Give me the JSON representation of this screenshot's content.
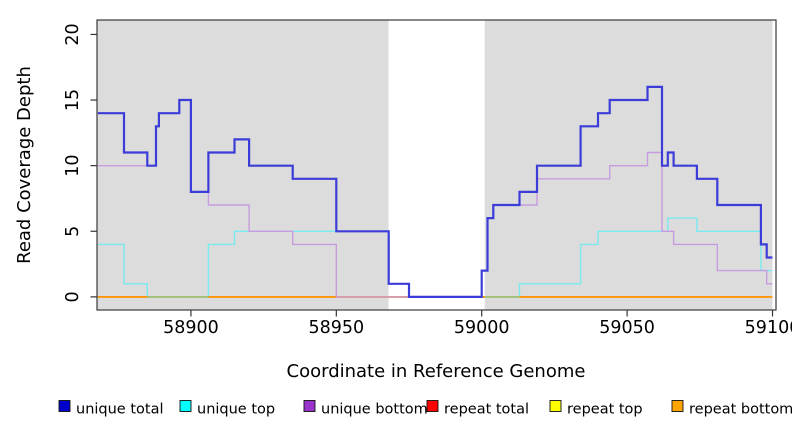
{
  "chart_data": {
    "type": "line",
    "step": true,
    "title": "",
    "xlabel": "Coordinate in Reference Genome",
    "ylabel": "Read Coverage Depth",
    "x_ticks": [
      58900,
      58950,
      59000,
      59050,
      59100
    ],
    "y_ticks": [
      0,
      5,
      10,
      15,
      20
    ],
    "x_range": [
      58867.7,
      59101.2
    ],
    "y_range": [
      -1,
      21.1
    ],
    "grid": false,
    "legend_position": "bottom",
    "plot_background_color": "#DCDCDC",
    "gap_region": {
      "x": [
        58968,
        59001
      ],
      "color": "#FFFFFF"
    },
    "series": [
      {
        "name": "unique total",
        "color": "#3C3CD8",
        "width": 2.2,
        "points": [
          [
            58868,
            14
          ],
          [
            58877,
            11
          ],
          [
            58885,
            10
          ],
          [
            58888,
            13
          ],
          [
            58889,
            14
          ],
          [
            58896,
            15
          ],
          [
            58900,
            8
          ],
          [
            58906,
            11
          ],
          [
            58915,
            12
          ],
          [
            58920,
            10
          ],
          [
            58935,
            9
          ],
          [
            58950,
            5
          ],
          [
            58968,
            1
          ],
          [
            58975,
            0
          ],
          [
            59000,
            2
          ],
          [
            59002,
            6
          ],
          [
            59004,
            7
          ],
          [
            59013,
            8
          ],
          [
            59019,
            10
          ],
          [
            59034,
            13
          ],
          [
            59040,
            14
          ],
          [
            59044,
            15
          ],
          [
            59057,
            16
          ],
          [
            59062,
            10
          ],
          [
            59064,
            11
          ],
          [
            59066,
            10
          ],
          [
            59074,
            9
          ],
          [
            59081,
            7
          ],
          [
            59096,
            4
          ],
          [
            59098,
            3
          ],
          [
            59100,
            3
          ]
        ]
      },
      {
        "name": "unique top",
        "color": "#78EAF0",
        "width": 1.4,
        "points": [
          [
            58868,
            4
          ],
          [
            58877,
            1
          ],
          [
            58885,
            0
          ],
          [
            58906,
            4
          ],
          [
            58915,
            5
          ],
          [
            58968,
            1
          ],
          [
            58975,
            0
          ],
          [
            59013,
            1
          ],
          [
            59034,
            4
          ],
          [
            59040,
            5
          ],
          [
            59064,
            6
          ],
          [
            59074,
            5
          ],
          [
            59096,
            2
          ],
          [
            59100,
            2
          ]
        ]
      },
      {
        "name": "unique bottom",
        "color": "#C79BE0",
        "width": 1.4,
        "points": [
          [
            58868,
            10
          ],
          [
            58888,
            13
          ],
          [
            58889,
            14
          ],
          [
            58896,
            15
          ],
          [
            58900,
            8
          ],
          [
            58906,
            7
          ],
          [
            58920,
            5
          ],
          [
            58935,
            4
          ],
          [
            58950,
            0
          ],
          [
            59000,
            2
          ],
          [
            59002,
            6
          ],
          [
            59004,
            7
          ],
          [
            59019,
            9
          ],
          [
            59044,
            10
          ],
          [
            59057,
            11
          ],
          [
            59062,
            5
          ],
          [
            59066,
            4
          ],
          [
            59081,
            2
          ],
          [
            59098,
            1
          ],
          [
            59100,
            1
          ]
        ]
      },
      {
        "name": "repeat total",
        "color": "#DD2222",
        "width": 1.4,
        "points": [
          [
            58868,
            0
          ],
          [
            59100,
            0
          ]
        ]
      },
      {
        "name": "repeat top",
        "color": "#FFFF00",
        "width": 1.4,
        "points": [
          [
            58868,
            0
          ],
          [
            59100,
            0
          ]
        ]
      },
      {
        "name": "repeat bottom",
        "color": "#FF9408",
        "width": 1.8,
        "points": [
          [
            58868,
            0
          ],
          [
            59100,
            0
          ]
        ]
      }
    ],
    "blend_segments": [
      {
        "x": [
          58885,
          58906
        ],
        "y": 0,
        "color": "#8FC98F"
      },
      {
        "x": [
          59001,
          59013
        ],
        "y": 0,
        "color": "#8FC98F"
      }
    ]
  },
  "legend": {
    "items": [
      {
        "label": "unique total",
        "swatch": "#0000CC"
      },
      {
        "label": "unique top",
        "swatch": "#00FFFF"
      },
      {
        "label": "unique bottom",
        "swatch": "#9933CC"
      },
      {
        "label": "repeat total",
        "swatch": "#FF0000"
      },
      {
        "label": "repeat top",
        "swatch": "#FFFF00"
      },
      {
        "label": "repeat bottom",
        "swatch": "#FFA500"
      }
    ]
  }
}
